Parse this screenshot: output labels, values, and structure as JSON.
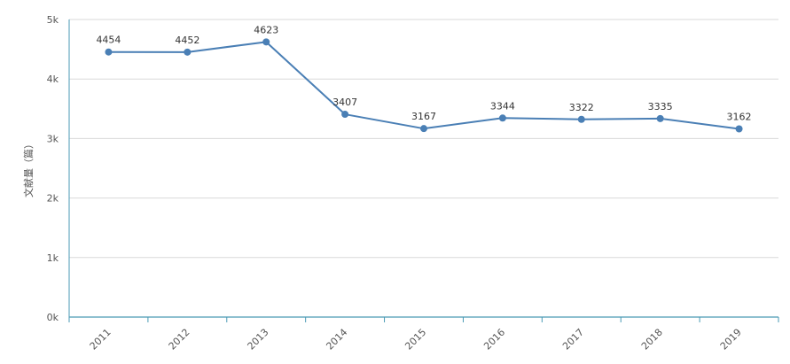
{
  "chart_data": {
    "type": "line",
    "title": "",
    "xlabel": "",
    "ylabel": "文献量（篇）",
    "categories": [
      "2011",
      "2012",
      "2013",
      "2014",
      "2015",
      "2016",
      "2017",
      "2018",
      "2019"
    ],
    "series": [
      {
        "values": [
          4454,
          4452,
          4623,
          3407,
          3167,
          3344,
          3322,
          3335,
          3162
        ]
      }
    ],
    "ylim": [
      0,
      5000
    ],
    "yticks": [
      0,
      1000,
      2000,
      3000,
      4000,
      5000
    ],
    "ytick_labels": [
      "0k",
      "1k",
      "2k",
      "3k",
      "4k",
      "5k"
    ],
    "grid": "horizontal",
    "legend": "none",
    "show_data_labels": true,
    "colors": {
      "line": "#4a7fb5",
      "axis": "#4a9ab5",
      "grid": "#d9d9d9",
      "text": "#555555"
    }
  }
}
